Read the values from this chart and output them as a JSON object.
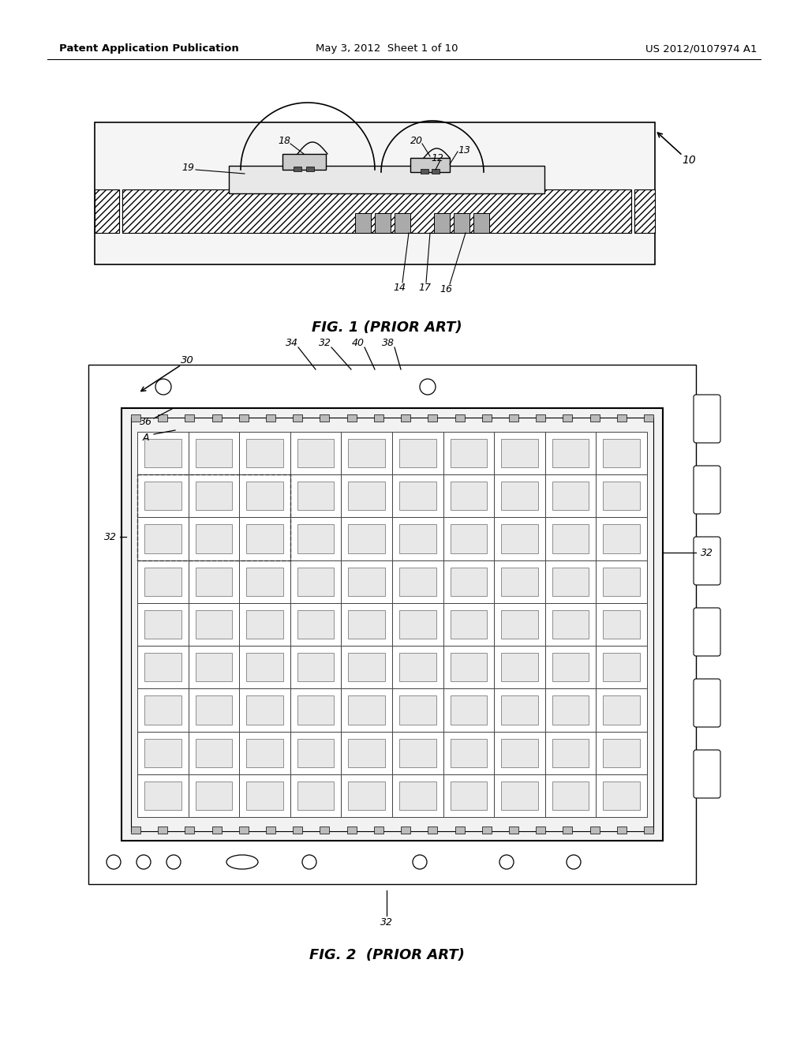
{
  "bg_color": "#ffffff",
  "line_color": "#000000",
  "header_text_left": "Patent Application Publication",
  "header_text_mid": "May 3, 2012  Sheet 1 of 10",
  "header_text_right": "US 2012/0107974 A1",
  "fig1_label": "FIG. 1 (PRIOR ART)",
  "fig2_label": "FIG. 2  (PRIOR ART)"
}
